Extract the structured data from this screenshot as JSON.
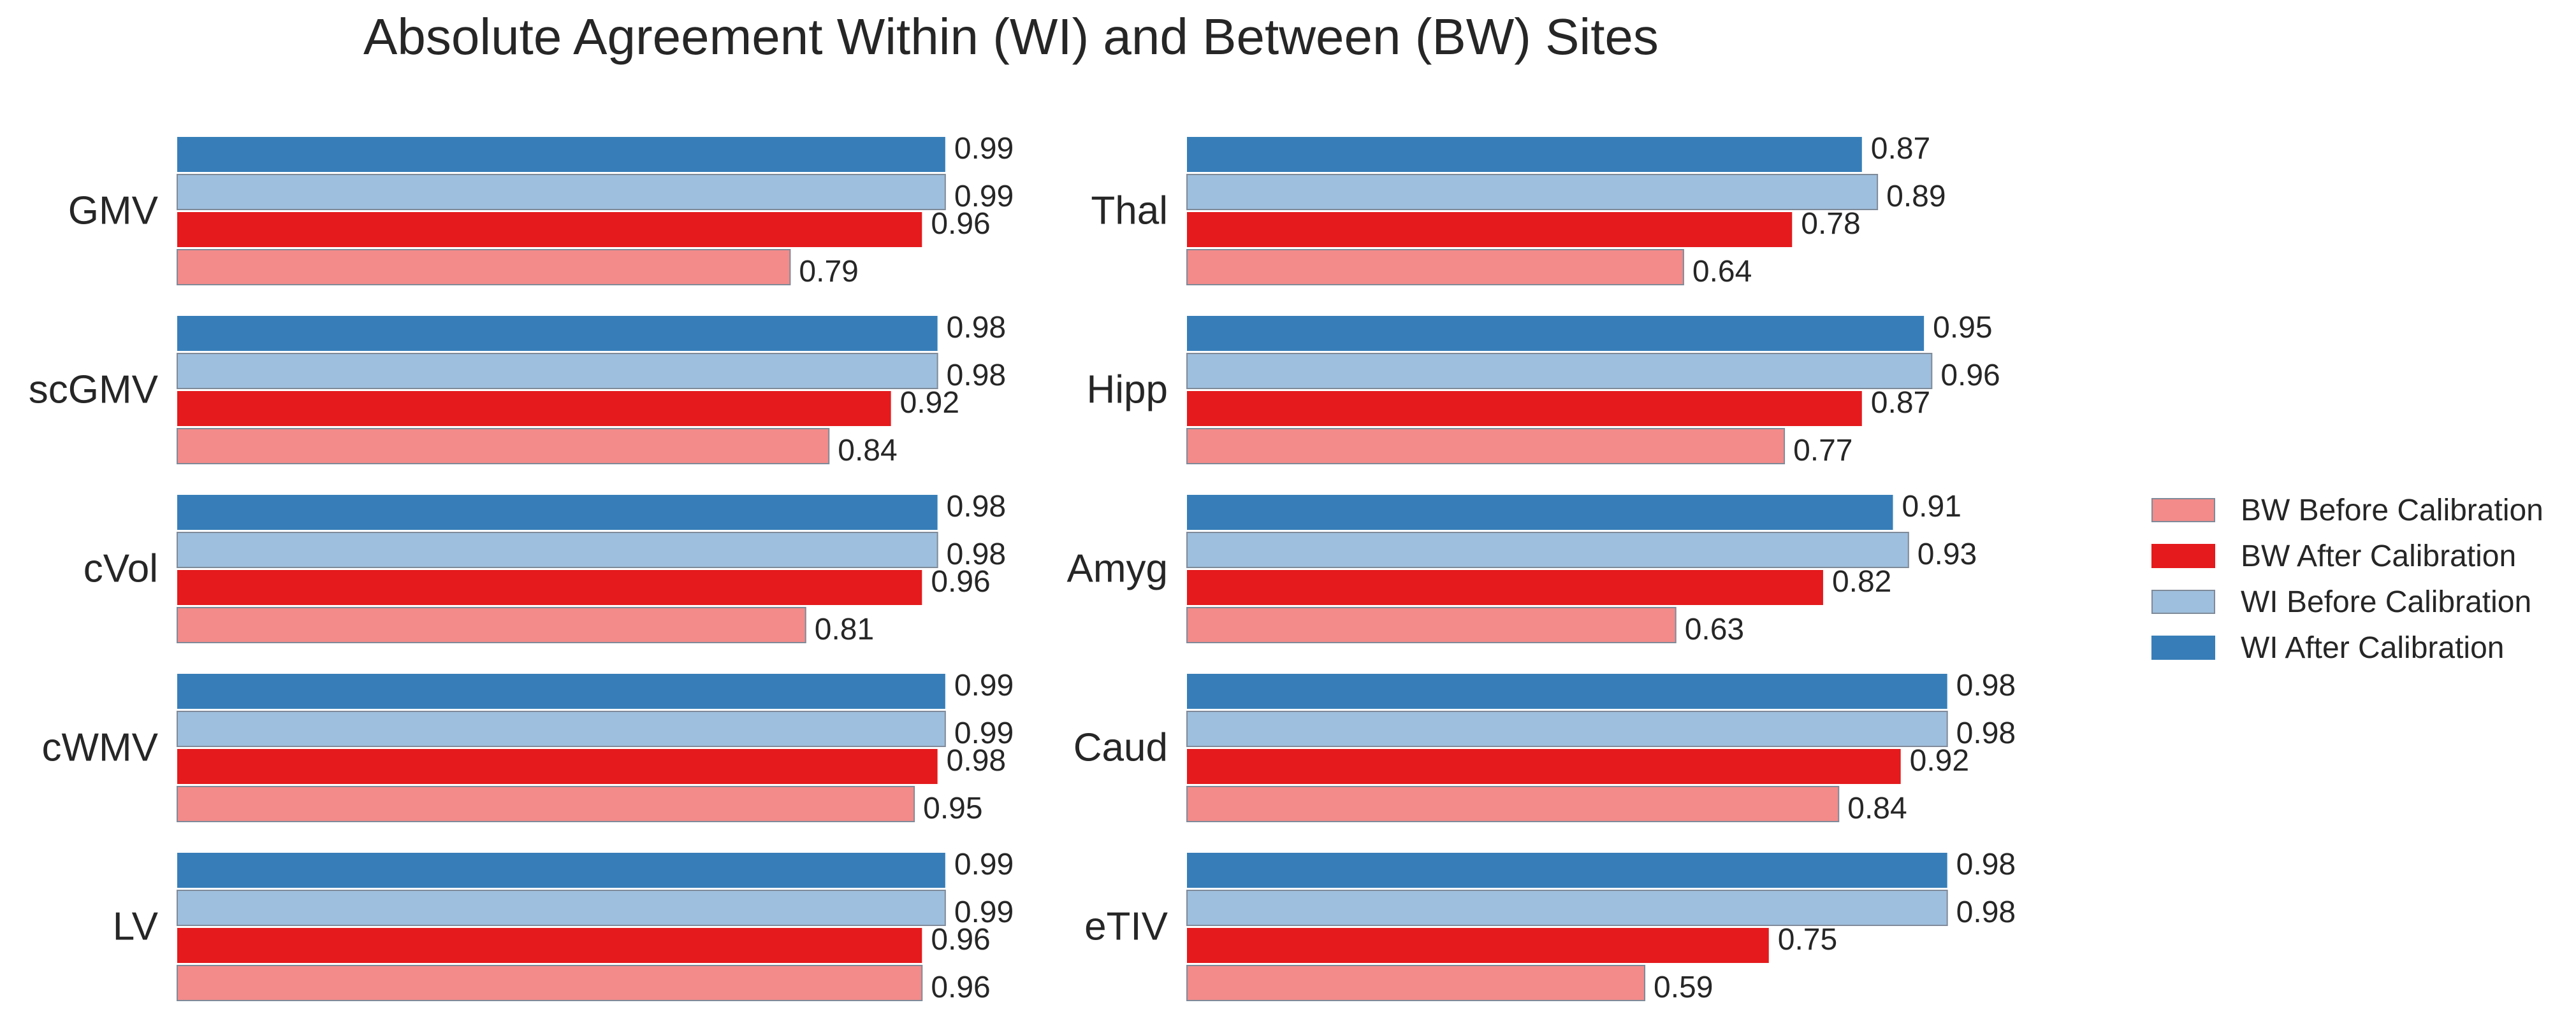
{
  "title": "Absolute Agreement Within (WI) and Between (BW) Sites",
  "legend": [
    {
      "name": "BW Before Calibration",
      "color": "#f28b8a",
      "outlined": true
    },
    {
      "name": "BW After Calibration",
      "color": "#e41a1c",
      "outlined": false
    },
    {
      "name": "WI Before Calibration",
      "color": "#9ebfdd",
      "outlined": true
    },
    {
      "name": "WI After Calibration",
      "color": "#377eb8",
      "outlined": false
    }
  ],
  "chart_data": [
    {
      "type": "bar",
      "orientation": "horizontal",
      "categories": [
        "GMV",
        "scGMV",
        "cVol",
        "cWMV",
        "LV"
      ],
      "xlim": [
        0,
        1
      ],
      "series": [
        {
          "name": "WI After Calibration",
          "values": [
            0.99,
            0.98,
            0.98,
            0.99,
            0.99
          ]
        },
        {
          "name": "WI Before Calibration",
          "values": [
            0.99,
            0.98,
            0.98,
            0.99,
            0.99
          ]
        },
        {
          "name": "BW After Calibration",
          "values": [
            0.96,
            0.92,
            0.96,
            0.98,
            0.96
          ]
        },
        {
          "name": "BW Before Calibration",
          "values": [
            0.79,
            0.84,
            0.81,
            0.95,
            0.96
          ]
        }
      ]
    },
    {
      "type": "bar",
      "orientation": "horizontal",
      "categories": [
        "Thal",
        "Hipp",
        "Amyg",
        "Caud",
        "eTIV"
      ],
      "xlim": [
        0,
        1
      ],
      "series": [
        {
          "name": "WI After Calibration",
          "values": [
            0.87,
            0.95,
            0.91,
            0.98,
            0.98
          ]
        },
        {
          "name": "WI Before Calibration",
          "values": [
            0.89,
            0.96,
            0.93,
            0.98,
            0.98
          ]
        },
        {
          "name": "BW After Calibration",
          "values": [
            0.78,
            0.87,
            0.82,
            0.92,
            0.75
          ]
        },
        {
          "name": "BW Before Calibration",
          "values": [
            0.64,
            0.77,
            0.63,
            0.84,
            0.59
          ]
        }
      ]
    }
  ]
}
